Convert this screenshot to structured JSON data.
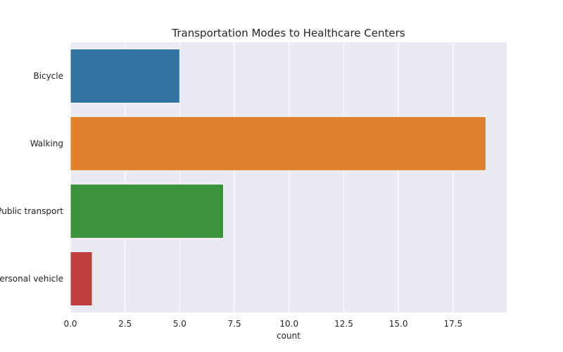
{
  "chart_data": {
    "type": "bar",
    "orientation": "horizontal",
    "title": "Transportation Modes to Healthcare Centers",
    "xlabel": "count",
    "ylabel": "",
    "categories": [
      "Bicycle",
      "Walking",
      "Public transport",
      "Personal vehicle"
    ],
    "values": [
      5,
      19,
      7,
      1
    ],
    "colors": [
      "#3274a1",
      "#e1812c",
      "#3a923a",
      "#c03d3e"
    ],
    "xlim": [
      0,
      19.95
    ],
    "xticks": [
      0.0,
      2.5,
      5.0,
      7.5,
      10.0,
      12.5,
      15.0,
      17.5
    ],
    "xtick_labels": [
      "0.0",
      "2.5",
      "5.0",
      "7.5",
      "10.0",
      "12.5",
      "15.0",
      "17.5"
    ],
    "grid": true,
    "background": "#eaeaf2"
  }
}
